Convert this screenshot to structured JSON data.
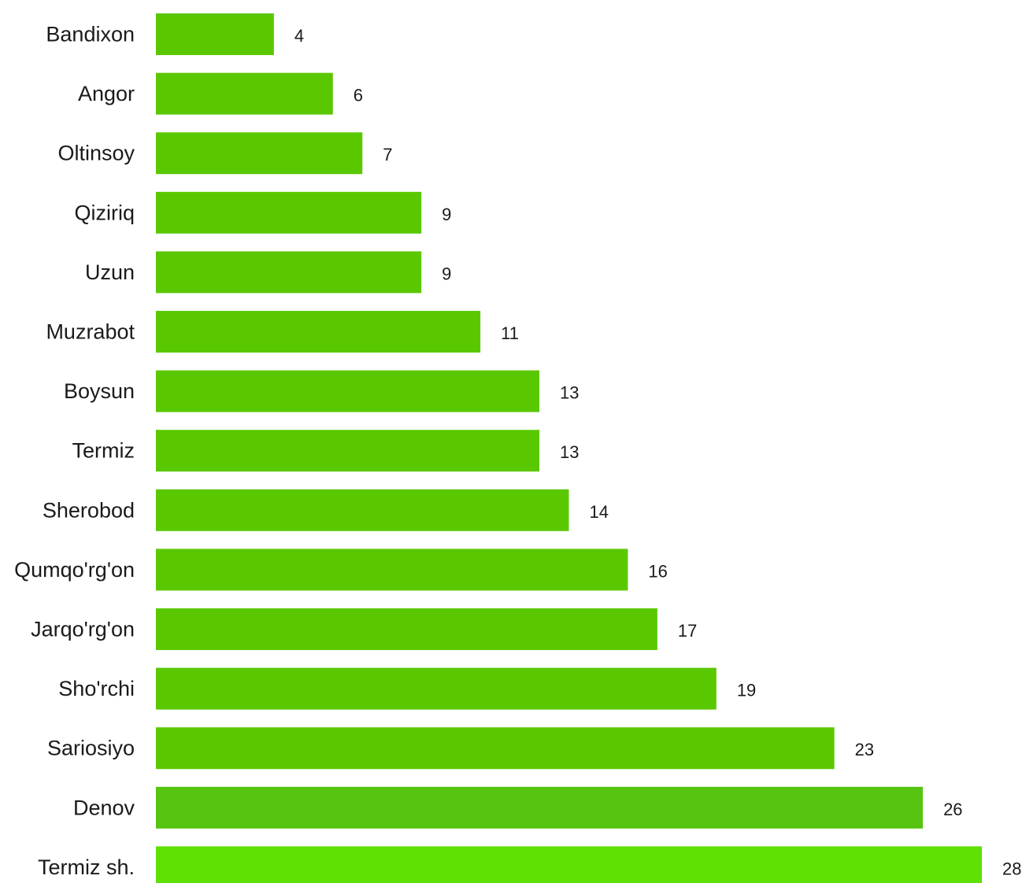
{
  "chart_data": {
    "type": "bar",
    "orientation": "horizontal",
    "title": "",
    "xlabel": "",
    "ylabel": "",
    "categories": [
      "Bandixon",
      "Angor",
      "Oltinsoy",
      "Qiziriq",
      "Uzun",
      "Muzrabot",
      "Boysun",
      "Termiz",
      "Sherobod",
      "Qumqo'rg'on",
      "Jarqo'rg'on",
      "Sho'rchi",
      "Sariosiyo",
      "Denov",
      "Termiz sh."
    ],
    "values": [
      4,
      6,
      7,
      9,
      9,
      11,
      13,
      13,
      14,
      16,
      17,
      19,
      23,
      26,
      28
    ],
    "bar_colors": [
      "#5ac800",
      "#5ac800",
      "#5ac800",
      "#5ac800",
      "#5ac800",
      "#5ac800",
      "#5ac800",
      "#5ac800",
      "#5ac800",
      "#5ac800",
      "#5ac800",
      "#5ac800",
      "#5ac800",
      "#56c410",
      "#5ee000"
    ],
    "xlim": [
      0,
      28
    ],
    "grid": false,
    "legend": "none",
    "data_labels": true
  }
}
